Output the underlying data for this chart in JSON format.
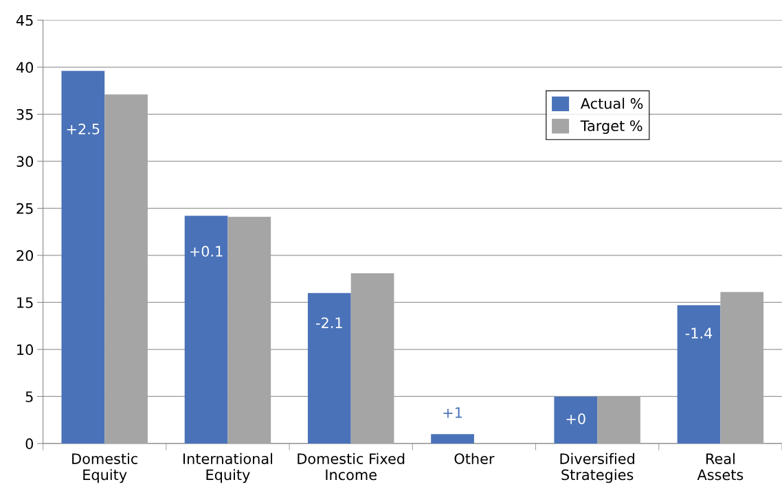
{
  "chart_data": {
    "type": "bar",
    "categories": [
      "Domestic\nEquity",
      "International\nEquity",
      "Domestic Fixed\nIncome",
      "Other",
      "Diversified\nStrategies",
      "Real\nAssets"
    ],
    "series": [
      {
        "name": "Actual %",
        "color": "#4a72b8",
        "values": [
          39.6,
          24.2,
          16.0,
          1.0,
          5.0,
          14.7
        ]
      },
      {
        "name": "Target %",
        "color": "#a5a5a5",
        "values": [
          37.1,
          24.1,
          18.1,
          0,
          5.0,
          16.1
        ]
      }
    ],
    "ylim": [
      0,
      45
    ],
    "yticks": [
      0,
      5,
      10,
      15,
      20,
      25,
      30,
      35,
      40,
      45
    ],
    "grid": "y",
    "legend": "top right",
    "annotations": [
      {
        "text": "+2.5",
        "x": "Domestic\nEquity",
        "y": 33.3
      },
      {
        "text": "+0.1",
        "x": "International\nEquity",
        "y": 20.3
      },
      {
        "text": "-2.1",
        "x": "Domestic Fixed\nIncome",
        "y": 12.7
      },
      {
        "text": "+1",
        "x": "Other",
        "y": 1.0
      },
      {
        "text": "+0",
        "x": "Diversified\nStrategies",
        "y": 2.5
      },
      {
        "text": "-1.4",
        "x": "Real\nAssets",
        "y": 11.6
      }
    ]
  }
}
